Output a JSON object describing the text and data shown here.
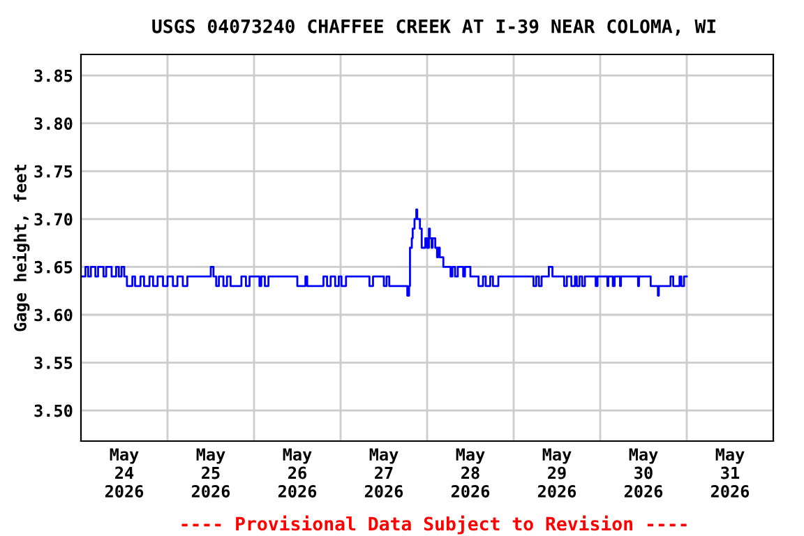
{
  "chart_data": {
    "type": "step",
    "title": "USGS 04073240 CHAFFEE CREEK AT I-39 NEAR COLOMA, WI",
    "ylabel": "Gage height, feet",
    "annotations": [
      "---- Provisional Data Subject to Revision ----"
    ],
    "xlim": [
      "2026-05-24T00:00",
      "2026-06-01T00:00"
    ],
    "ylim": [
      3.468,
      3.872
    ],
    "yticks": [
      {
        "value": 3.5,
        "label": "3.50"
      },
      {
        "value": 3.55,
        "label": "3.55"
      },
      {
        "value": 3.6,
        "label": "3.60"
      },
      {
        "value": 3.65,
        "label": "3.65"
      },
      {
        "value": 3.7,
        "label": "3.70"
      },
      {
        "value": 3.75,
        "label": "3.75"
      },
      {
        "value": 3.8,
        "label": "3.80"
      },
      {
        "value": 3.85,
        "label": "3.85"
      }
    ],
    "xticks": [
      {
        "value": "2026-05-24T12:00",
        "label": "May\n24\n2026"
      },
      {
        "value": "2026-05-25T12:00",
        "label": "May\n25\n2026"
      },
      {
        "value": "2026-05-26T12:00",
        "label": "May\n26\n2026"
      },
      {
        "value": "2026-05-27T12:00",
        "label": "May\n27\n2026"
      },
      {
        "value": "2026-05-28T12:00",
        "label": "May\n28\n2026"
      },
      {
        "value": "2026-05-29T12:00",
        "label": "May\n29\n2026"
      },
      {
        "value": "2026-05-30T12:00",
        "label": "May\n30\n2026"
      },
      {
        "value": "2026-05-31T12:00",
        "label": "May\n31\n2026"
      },
      {
        "value": "2026-05-25T00:00",
        "label": null
      },
      {
        "value": "2026-05-26T00:00",
        "label": null
      },
      {
        "value": "2026-05-27T00:00",
        "label": null
      },
      {
        "value": "2026-05-28T00:00",
        "label": null
      },
      {
        "value": "2026-05-29T00:00",
        "label": null
      },
      {
        "value": "2026-05-30T00:00",
        "label": null
      },
      {
        "value": "2026-05-31T00:00",
        "label": null
      }
    ],
    "grid": true,
    "legend": false,
    "series": [
      {
        "color": "#0000ff",
        "x": [
          "2026-05-24T00:00",
          "2026-05-24T01:15",
          "2026-05-24T02:00",
          "2026-05-24T02:45",
          "2026-05-24T04:00",
          "2026-05-24T04:45",
          "2026-05-24T06:15",
          "2026-05-24T07:00",
          "2026-05-24T08:30",
          "2026-05-24T09:45",
          "2026-05-24T10:30",
          "2026-05-24T11:15",
          "2026-05-24T12:00",
          "2026-05-24T12:45",
          "2026-05-24T14:15",
          "2026-05-24T15:00",
          "2026-05-24T16:30",
          "2026-05-24T17:30",
          "2026-05-24T19:00",
          "2026-05-24T20:00",
          "2026-05-24T21:15",
          "2026-05-24T22:45",
          "2026-05-25T00:00",
          "2026-05-25T01:30",
          "2026-05-25T02:45",
          "2026-05-25T04:15",
          "2026-05-25T05:30",
          "2026-05-25T12:00",
          "2026-05-25T12:45",
          "2026-05-25T13:30",
          "2026-05-25T14:15",
          "2026-05-25T15:30",
          "2026-05-25T16:30",
          "2026-05-25T17:30",
          "2026-05-25T20:30",
          "2026-05-25T21:45",
          "2026-05-25T22:45",
          "2026-05-26T01:30",
          "2026-05-26T02:00",
          "2026-05-26T03:00",
          "2026-05-26T04:00",
          "2026-05-26T12:00",
          "2026-05-26T14:15",
          "2026-05-26T14:45",
          "2026-05-26T19:15",
          "2026-05-26T20:15",
          "2026-05-26T21:15",
          "2026-05-26T22:30",
          "2026-05-26T23:30",
          "2026-05-27T00:15",
          "2026-05-27T01:30",
          "2026-05-27T08:00",
          "2026-05-27T09:00",
          "2026-05-27T12:00",
          "2026-05-27T12:45",
          "2026-05-27T13:30",
          "2026-05-27T18:30",
          "2026-05-27T19:00",
          "2026-05-27T19:15",
          "2026-05-27T19:45",
          "2026-05-27T20:00",
          "2026-05-27T20:30",
          "2026-05-27T21:00",
          "2026-05-27T21:15",
          "2026-05-27T22:00",
          "2026-05-27T22:30",
          "2026-05-27T23:30",
          "2026-05-28T00:00",
          "2026-05-28T00:30",
          "2026-05-28T00:45",
          "2026-05-28T01:15",
          "2026-05-28T01:30",
          "2026-05-28T02:15",
          "2026-05-28T02:45",
          "2026-05-28T03:00",
          "2026-05-28T03:30",
          "2026-05-28T04:30",
          "2026-05-28T06:30",
          "2026-05-28T07:00",
          "2026-05-28T07:45",
          "2026-05-28T08:30",
          "2026-05-28T10:00",
          "2026-05-28T10:30",
          "2026-05-28T12:00",
          "2026-05-28T14:15",
          "2026-05-28T15:30",
          "2026-05-28T16:15",
          "2026-05-28T17:30",
          "2026-05-28T18:15",
          "2026-05-28T19:45",
          "2026-05-29T05:30",
          "2026-05-29T06:15",
          "2026-05-29T07:00",
          "2026-05-29T07:45",
          "2026-05-29T09:45",
          "2026-05-29T10:45",
          "2026-05-29T14:00",
          "2026-05-29T14:45",
          "2026-05-29T16:00",
          "2026-05-29T17:00",
          "2026-05-29T17:30",
          "2026-05-29T18:15",
          "2026-05-29T19:00",
          "2026-05-29T19:45",
          "2026-05-29T22:45",
          "2026-05-29T23:15",
          "2026-05-30T02:00",
          "2026-05-30T02:15",
          "2026-05-30T03:30",
          "2026-05-30T04:00",
          "2026-05-30T05:30",
          "2026-05-30T05:45",
          "2026-05-30T10:30",
          "2026-05-30T10:45",
          "2026-05-30T14:00",
          "2026-05-30T16:00",
          "2026-05-30T16:15",
          "2026-05-30T19:30",
          "2026-05-30T20:15",
          "2026-05-30T22:00",
          "2026-05-30T22:30",
          "2026-05-30T23:15",
          "2026-05-31T00:00"
        ],
        "values": [
          3.64,
          3.65,
          3.64,
          3.65,
          3.64,
          3.65,
          3.64,
          3.65,
          3.64,
          3.65,
          3.64,
          3.65,
          3.64,
          3.63,
          3.64,
          3.63,
          3.64,
          3.63,
          3.64,
          3.63,
          3.64,
          3.63,
          3.64,
          3.63,
          3.64,
          3.63,
          3.64,
          3.65,
          3.64,
          3.63,
          3.64,
          3.63,
          3.64,
          3.63,
          3.64,
          3.63,
          3.64,
          3.63,
          3.64,
          3.63,
          3.64,
          3.63,
          3.64,
          3.63,
          3.64,
          3.63,
          3.64,
          3.63,
          3.64,
          3.63,
          3.64,
          3.63,
          3.64,
          3.63,
          3.64,
          3.63,
          3.62,
          3.63,
          3.67,
          3.68,
          3.69,
          3.7,
          3.71,
          3.7,
          3.69,
          3.67,
          3.68,
          3.67,
          3.69,
          3.68,
          3.67,
          3.68,
          3.67,
          3.66,
          3.67,
          3.66,
          3.65,
          3.64,
          3.65,
          3.64,
          3.65,
          3.64,
          3.65,
          3.64,
          3.63,
          3.64,
          3.63,
          3.64,
          3.63,
          3.64,
          3.63,
          3.64,
          3.63,
          3.64,
          3.65,
          3.64,
          3.63,
          3.64,
          3.63,
          3.64,
          3.63,
          3.64,
          3.63,
          3.64,
          3.63,
          3.64,
          3.63,
          3.64,
          3.63,
          3.64,
          3.63,
          3.64,
          3.63,
          3.64,
          3.63,
          3.62,
          3.63,
          3.64,
          3.63,
          3.64,
          3.63,
          3.64,
          3.64
        ]
      }
    ]
  }
}
